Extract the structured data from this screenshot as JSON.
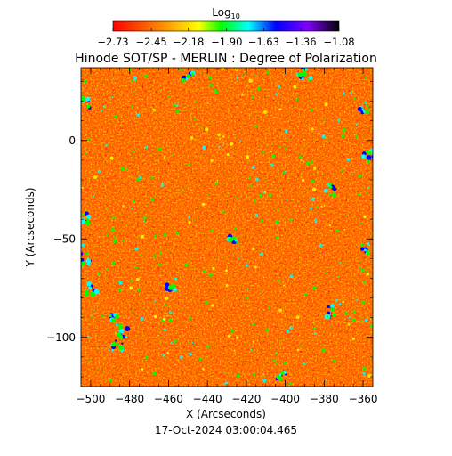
{
  "chart_data": {
    "type": "heatmap",
    "title": "Hinode SOT/SP - MERLIN : Degree of Polarization",
    "xlabel": "X (Arcseconds)",
    "ylabel": "Y (Arcseconds)",
    "timestamp": "17-Oct-2024 03:00:04.465",
    "xlim": [
      -505,
      -355
    ],
    "ylim": [
      -125,
      37
    ],
    "xticks": [
      -500,
      -480,
      -460,
      -440,
      -420,
      -400,
      -380,
      -360
    ],
    "xtick_labels": [
      "−500",
      "−480",
      "−460",
      "−440",
      "−420",
      "−400",
      "−380",
      "−360"
    ],
    "yticks": [
      0,
      -50,
      -100
    ],
    "ytick_labels": [
      "0",
      "−50",
      "−100"
    ],
    "colorbar": {
      "label_main": "Log",
      "label_sub": "10",
      "min": -2.73,
      "max": -1.08,
      "ticks": [
        -2.73,
        -2.45,
        -2.18,
        -1.9,
        -1.63,
        -1.36,
        -1.08
      ],
      "tick_labels": [
        "−2.73",
        "−2.45",
        "−2.18",
        "−1.90",
        "−1.63",
        "−1.36",
        "−1.08"
      ]
    },
    "colors": {
      "low": "#ff0000",
      "orange": "#ff7a00",
      "yellow": "#ffff00",
      "green": "#00ff00",
      "cyan": "#00ffff",
      "blue": "#0000ff",
      "purple": "#7f00ff",
      "high": "#000000"
    }
  }
}
